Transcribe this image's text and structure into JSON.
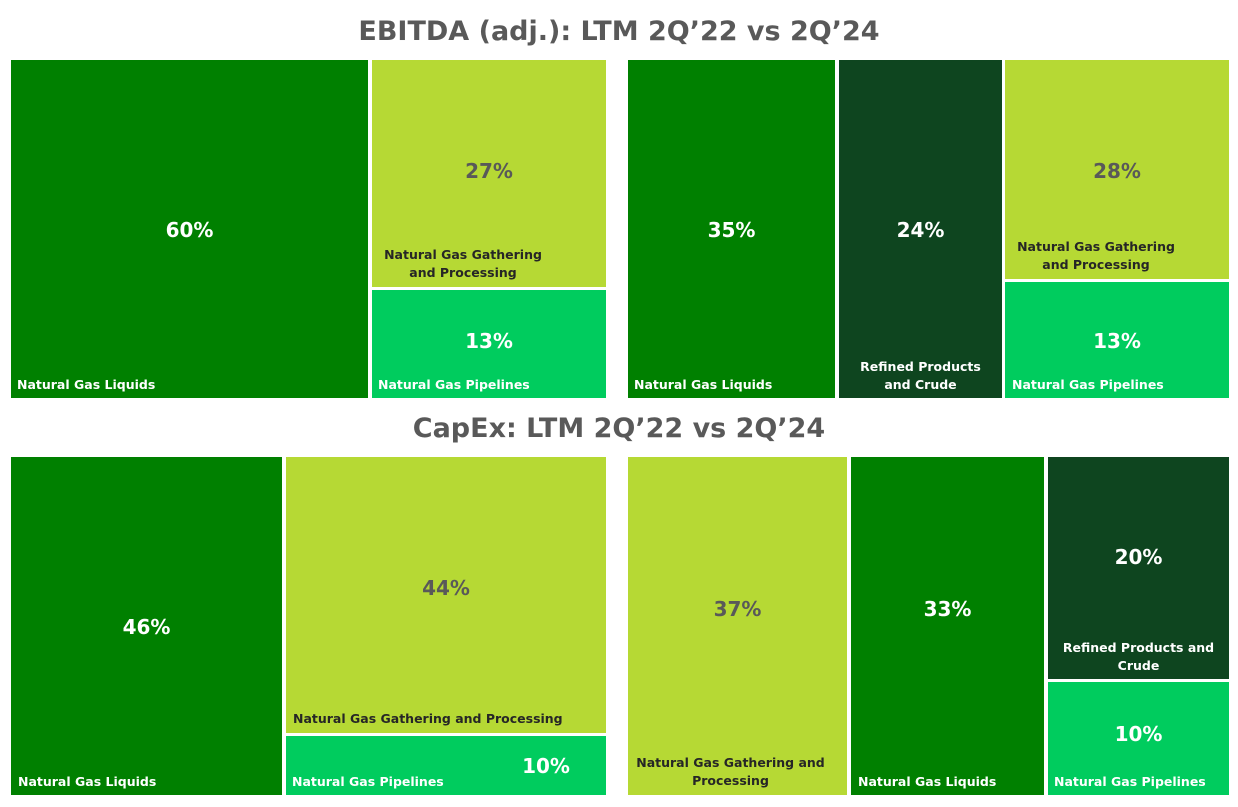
{
  "colors": {
    "liquids": "#008000",
    "gathering": "#b6d934",
    "pipelines": "#00cc5e",
    "refined": "#0e451f",
    "text_light": "#ffffff",
    "text_dark_value": "#595959",
    "text_dark_label": "#262626"
  },
  "titles": {
    "ebitda": "EBITDA (adj.): LTM 2Q’22 vs 2Q’24",
    "capex": "CapEx: LTM 2Q’22 vs 2Q’24"
  },
  "chart_data": [
    {
      "type": "treemap",
      "title": "EBITDA (adj.): LTM 2Q’22 vs 2Q’24",
      "period": "LTM 2Q’22",
      "categories": [
        "Natural Gas Liquids",
        "Natural Gas Gathering and Processing",
        "Natural Gas Pipelines"
      ],
      "values": [
        60,
        27,
        13
      ],
      "value_labels": [
        "60%",
        "27%",
        "13%"
      ],
      "unit": "%"
    },
    {
      "type": "treemap",
      "title": "EBITDA (adj.): LTM 2Q’22 vs 2Q’24",
      "period": "LTM 2Q’24",
      "categories": [
        "Natural Gas Liquids",
        "Refined Products and Crude",
        "Natural Gas Gathering and Processing",
        "Natural Gas Pipelines"
      ],
      "values": [
        35,
        24,
        28,
        13
      ],
      "value_labels": [
        "35%",
        "24%",
        "28%",
        "13%"
      ],
      "unit": "%"
    },
    {
      "type": "treemap",
      "title": "CapEx: LTM 2Q’22 vs 2Q’24",
      "period": "LTM 2Q’22",
      "categories": [
        "Natural Gas Liquids",
        "Natural Gas Gathering and Processing",
        "Natural Gas Pipelines"
      ],
      "values": [
        46,
        44,
        10
      ],
      "value_labels": [
        "46%",
        "44%",
        "10%"
      ],
      "unit": "%"
    },
    {
      "type": "treemap",
      "title": "CapEx: LTM 2Q’22 vs 2Q’24",
      "period": "LTM 2Q’24",
      "categories": [
        "Natural Gas Gathering and Processing",
        "Natural Gas Liquids",
        "Refined Products and Crude",
        "Natural Gas Pipelines"
      ],
      "values": [
        37,
        33,
        20,
        10
      ],
      "value_labels": [
        "37%",
        "33%",
        "20%",
        "10%"
      ],
      "unit": "%"
    }
  ]
}
